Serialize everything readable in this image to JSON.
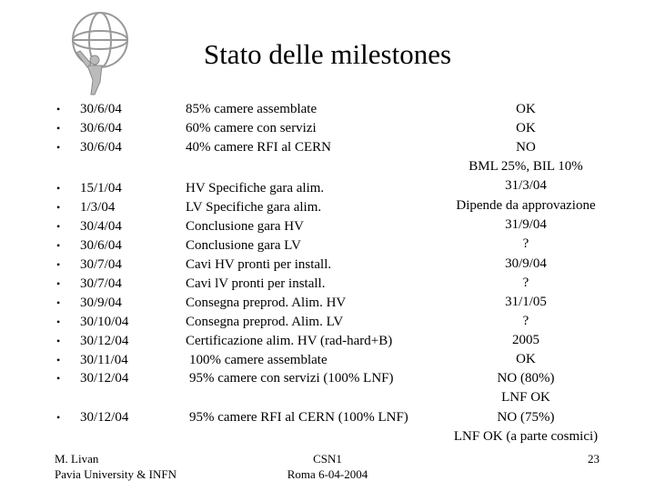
{
  "header": {
    "title": "Stato delle milestones"
  },
  "rows": [
    {
      "date": "30/6/04",
      "task": "85% camere assemblate"
    },
    {
      "date": "30/6/04",
      "task": "60% camere con servizi"
    },
    {
      "date": "30/6/04",
      "task": "40% camere RFI al CERN"
    },
    {
      "date": "15/1/04",
      "task": "HV Specifiche gara alim."
    },
    {
      "date": "1/3/04",
      "task": "LV Specifiche gara alim."
    },
    {
      "date": "30/4/04",
      "task": "Conclusione gara HV"
    },
    {
      "date": "30/6/04",
      "task": "Conclusione gara LV"
    },
    {
      "date": "30/7/04",
      "task": "Cavi HV pronti per install."
    },
    {
      "date": "30/7/04",
      "task": "Cavi lV pronti per install."
    },
    {
      "date": "30/9/04",
      "task": "Consegna preprod. Alim. HV"
    },
    {
      "date": "30/10/04",
      "task": "Consegna preprod. Alim. LV"
    },
    {
      "date": "30/12/04",
      "task": "Certificazione alim. HV (rad-hard+B)"
    },
    {
      "date": "30/11/04",
      "task": "100% camere assemblate"
    },
    {
      "date": "30/12/04",
      "task": "95% camere con servizi (100% LNF)"
    },
    {
      "date": "30/12/04",
      "task": "95% camere RFI al CERN (100% LNF)"
    }
  ],
  "status": [
    "OK",
    "OK",
    "NO",
    "BML 25%, BIL 10%",
    "31/3/04",
    "Dipende da approvazione",
    "31/9/04",
    "?",
    "30/9/04",
    "?",
    "31/1/05",
    "?",
    "2005",
    "OK",
    "NO (80%)",
    "LNF OK",
    "NO (75%)",
    "LNF OK (a parte cosmici)"
  ],
  "footer": {
    "author": "M. Livan",
    "affiliation": "Pavia University & INFN",
    "event": "CSN1",
    "place_date": "Roma 6-04-2004",
    "page": "23"
  }
}
